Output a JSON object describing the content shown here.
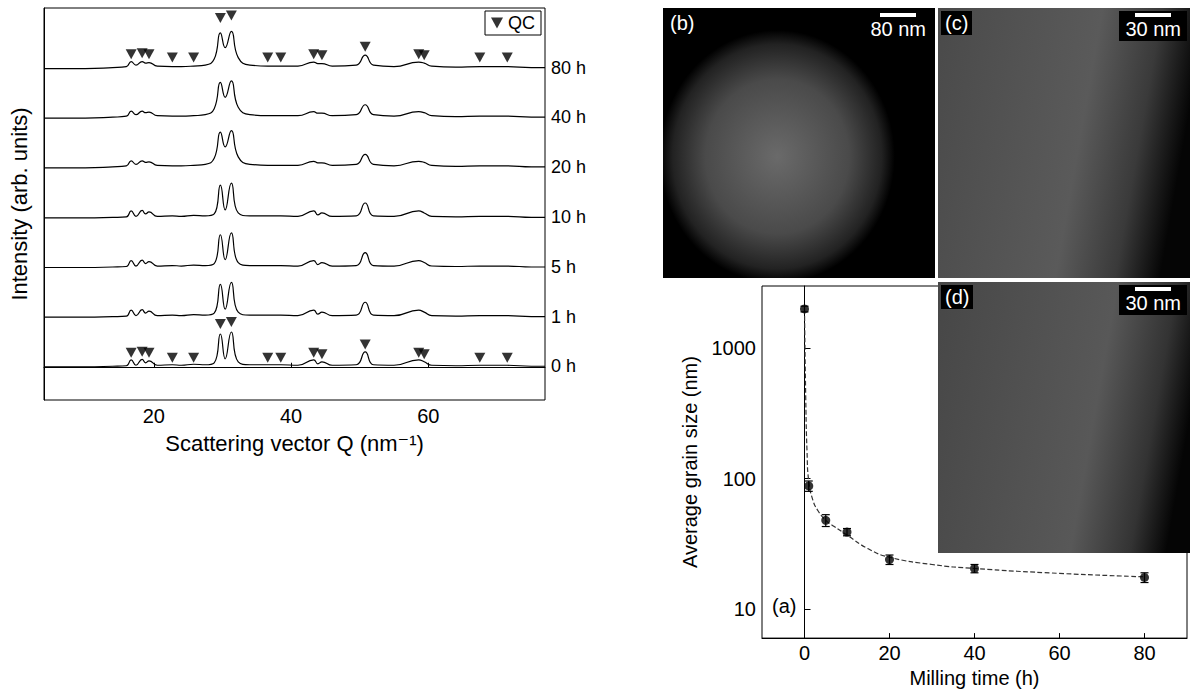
{
  "chart_data": [
    {
      "type": "line",
      "x_label": "Scattering vector Q (nm⁻¹)",
      "y_label": "Intensity (arb. units)",
      "x": [
        4,
        10,
        14,
        16,
        16.7,
        17.4,
        18.3,
        18.8,
        19.3,
        20.5,
        22.7,
        24,
        25.8,
        27.5,
        28.8,
        29.7,
        30.4,
        31.3,
        32.3,
        34,
        36.6,
        38.5,
        41,
        43.3,
        43.9,
        44.5,
        46,
        49.5,
        50.8,
        52,
        55,
        58.6,
        59.4,
        60.5,
        64,
        67.5,
        71.5,
        75,
        77
      ],
      "xlim": [
        4,
        77
      ],
      "xticks": [
        20,
        40,
        60
      ],
      "ylim": [
        -0.65,
        7.25
      ],
      "tick_labels": "x",
      "grid": false,
      "legend": "top-right",
      "series": [
        {
          "name": "0 h",
          "color": "#000000",
          "values": [
            0.02,
            0.02,
            0.03,
            0.04,
            0.16,
            0.05,
            0.17,
            0.1,
            0.14,
            0.05,
            0.06,
            0.05,
            0.07,
            0.06,
            0.1,
            0.68,
            0.18,
            0.72,
            0.12,
            0.06,
            0.06,
            0.06,
            0.05,
            0.16,
            0.08,
            0.12,
            0.05,
            0.06,
            0.32,
            0.06,
            0.05,
            0.16,
            0.12,
            0.05,
            0.04,
            0.05,
            0.05,
            0.03,
            0.03
          ]
        },
        {
          "name": "1 h",
          "color": "#000000",
          "values": [
            1.02,
            1.02,
            1.03,
            1.04,
            1.16,
            1.05,
            1.17,
            1.1,
            1.14,
            1.05,
            1.06,
            1.05,
            1.07,
            1.06,
            1.1,
            1.68,
            1.18,
            1.72,
            1.12,
            1.06,
            1.06,
            1.06,
            1.05,
            1.16,
            1.08,
            1.12,
            1.05,
            1.06,
            1.32,
            1.06,
            1.05,
            1.16,
            1.12,
            1.05,
            1.04,
            1.05,
            1.05,
            1.03,
            1.03
          ]
        },
        {
          "name": "5 h",
          "color": "#000000",
          "values": [
            2.02,
            2.02,
            2.03,
            2.04,
            2.16,
            2.05,
            2.17,
            2.1,
            2.14,
            2.05,
            2.06,
            2.05,
            2.07,
            2.06,
            2.1,
            2.68,
            2.18,
            2.72,
            2.12,
            2.06,
            2.06,
            2.06,
            2.05,
            2.16,
            2.08,
            2.12,
            2.05,
            2.06,
            2.32,
            2.06,
            2.05,
            2.16,
            2.12,
            2.05,
            2.04,
            2.05,
            2.05,
            2.03,
            2.03
          ]
        },
        {
          "name": "10 h",
          "color": "#000000",
          "values": [
            3.02,
            3.02,
            3.03,
            3.04,
            3.16,
            3.05,
            3.17,
            3.1,
            3.14,
            3.05,
            3.06,
            3.05,
            3.07,
            3.06,
            3.1,
            3.68,
            3.18,
            3.72,
            3.12,
            3.06,
            3.06,
            3.06,
            3.05,
            3.16,
            3.08,
            3.12,
            3.05,
            3.06,
            3.32,
            3.06,
            3.05,
            3.16,
            3.12,
            3.05,
            3.04,
            3.05,
            3.05,
            3.03,
            3.03
          ]
        },
        {
          "name": "20 h",
          "color": "#000000",
          "values": [
            4.03,
            4.03,
            4.05,
            4.07,
            4.17,
            4.1,
            4.17,
            4.14,
            4.15,
            4.08,
            4.07,
            4.07,
            4.08,
            4.1,
            4.22,
            4.75,
            4.45,
            4.78,
            4.25,
            4.1,
            4.08,
            4.08,
            4.08,
            4.16,
            4.13,
            4.13,
            4.08,
            4.1,
            4.3,
            4.1,
            4.07,
            4.16,
            4.14,
            4.08,
            4.06,
            4.07,
            4.07,
            4.05,
            4.05
          ]
        },
        {
          "name": "40 h",
          "color": "#000000",
          "values": [
            5.03,
            5.03,
            5.05,
            5.07,
            5.17,
            5.1,
            5.17,
            5.14,
            5.15,
            5.08,
            5.07,
            5.07,
            5.08,
            5.1,
            5.22,
            5.75,
            5.45,
            5.78,
            5.25,
            5.1,
            5.08,
            5.08,
            5.08,
            5.16,
            5.13,
            5.13,
            5.08,
            5.1,
            5.3,
            5.1,
            5.07,
            5.16,
            5.14,
            5.08,
            5.06,
            5.07,
            5.07,
            5.05,
            5.05
          ]
        },
        {
          "name": "80 h",
          "color": "#000000",
          "values": [
            6.03,
            6.03,
            6.05,
            6.07,
            6.17,
            6.1,
            6.17,
            6.14,
            6.15,
            6.08,
            6.07,
            6.07,
            6.08,
            6.1,
            6.22,
            6.75,
            6.45,
            6.78,
            6.25,
            6.1,
            6.08,
            6.08,
            6.08,
            6.16,
            6.13,
            6.13,
            6.08,
            6.1,
            6.3,
            6.1,
            6.07,
            6.16,
            6.14,
            6.08,
            6.06,
            6.07,
            6.07,
            6.05,
            6.05
          ]
        },
        {
          "name": "QC",
          "type": "scatter",
          "marker": "triangle-down",
          "color": "#000000",
          "x": [
            16.7,
            18.3,
            19.3,
            22.7,
            25.8,
            29.7,
            31.3,
            36.6,
            38.5,
            43.3,
            44.5,
            50.8,
            58.6,
            59.4,
            67.5,
            71.5,
            16.7,
            18.3,
            19.3,
            22.7,
            25.8,
            29.7,
            31.3,
            36.6,
            38.5,
            43.3,
            44.5,
            50.8,
            58.6,
            59.4,
            67.5,
            71.5
          ],
          "values": [
            0.3,
            0.32,
            0.3,
            0.2,
            0.2,
            0.88,
            0.92,
            0.2,
            0.2,
            0.3,
            0.27,
            0.47,
            0.3,
            0.27,
            0.2,
            0.2,
            6.32,
            6.34,
            6.32,
            6.25,
            6.25,
            7.05,
            7.1,
            6.25,
            6.25,
            6.32,
            6.3,
            6.47,
            6.32,
            6.3,
            6.25,
            6.25
          ]
        }
      ]
    },
    {
      "type": "scatter",
      "panel": "(a)",
      "x_label": "Milling time (h)",
      "y_label": "Average grain size (nm)",
      "xlim": [
        -10,
        90
      ],
      "xticks": [
        0,
        20,
        40,
        60,
        80
      ],
      "ylim": [
        6,
        3000
      ],
      "yticks": [
        10,
        100,
        1000
      ],
      "log": "y",
      "grid": false,
      "series": [
        {
          "type": "scatter",
          "marker": "circle",
          "color": "#000000",
          "x": [
            0,
            1,
            5,
            10,
            20,
            40,
            80
          ],
          "values": [
            2000,
            88,
            48,
            39,
            24,
            20.5,
            17.5
          ],
          "errors": [
            100,
            8,
            5,
            2.5,
            2,
            1.5,
            1.5
          ]
        },
        {
          "type": "line",
          "line_style": "dashed",
          "color": "#333333",
          "x": [
            0,
            0.3,
            0.6,
            1,
            2,
            3,
            5,
            7,
            10,
            15,
            20,
            30,
            40,
            60,
            80
          ],
          "values": [
            2000,
            400,
            160,
            95,
            68,
            58,
            48,
            43,
            37,
            29,
            25,
            22,
            20.5,
            18.8,
            17.7
          ]
        }
      ]
    }
  ],
  "panels": [
    {
      "label": "(b)",
      "scale_bar": "80 nm"
    },
    {
      "label": "(c)",
      "scale_bar": "30 nm"
    },
    {
      "label": "(d)",
      "scale_bar": "30 nm"
    }
  ]
}
